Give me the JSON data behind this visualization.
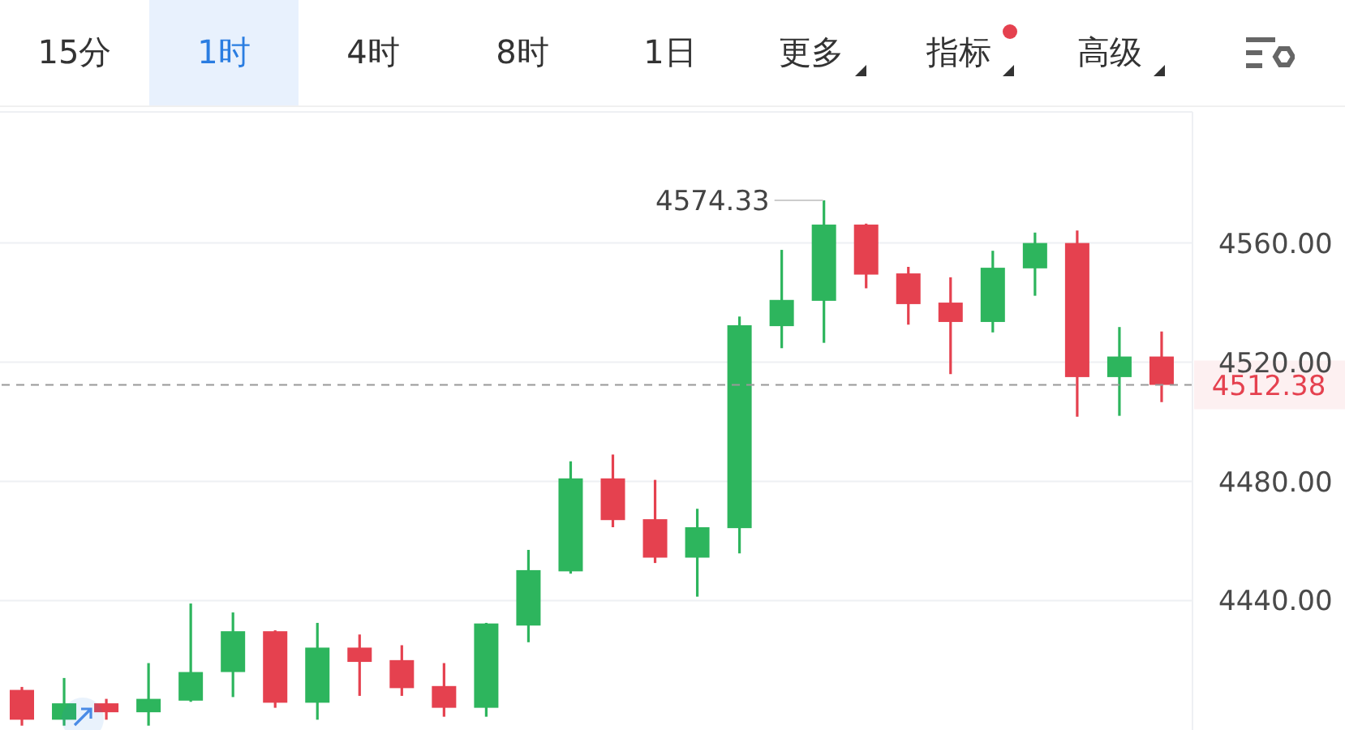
{
  "chart_data": {
    "type": "candlestick",
    "annotations": [
      "15分",
      "1时",
      "4时",
      "8时",
      "1日",
      "更多",
      "指标",
      "高级",
      "4574.33"
    ],
    "categories": [
      null,
      null,
      null,
      null,
      null,
      null,
      null,
      null,
      null,
      null,
      null,
      null,
      null,
      null,
      null,
      null,
      null,
      null,
      null,
      null,
      null,
      null,
      null,
      null,
      null,
      null,
      null,
      null
    ],
    "ohlc": [
      [
        4410,
        4411,
        4398,
        4400
      ],
      [
        4400,
        4414,
        4398,
        4405.5
      ],
      [
        4405.5,
        4407,
        4400,
        4402.5
      ],
      [
        4402.5,
        4419,
        4398,
        4407
      ],
      [
        4406.4,
        4439,
        4406,
        4416
      ],
      [
        4416,
        4436,
        4407.6,
        4429.7
      ],
      [
        4429.7,
        4430,
        4404,
        4405.7
      ],
      [
        4405.7,
        4432.5,
        4400,
        4424.2
      ],
      [
        4424.2,
        4428.6,
        4408,
        4419.4
      ],
      [
        4420,
        4425,
        4408,
        4410.6
      ],
      [
        4411.3,
        4419,
        4401,
        4404
      ],
      [
        4404,
        4432.5,
        4401,
        4432.3
      ],
      [
        4431.6,
        4457,
        4426,
        4450.2
      ],
      [
        4449.8,
        4486.7,
        4449,
        4481
      ],
      [
        4481,
        4489,
        4464.6,
        4467
      ],
      [
        4467.3,
        4480.5,
        4452.6,
        4454.4
      ],
      [
        4454.4,
        4470.8,
        4441.3,
        4464.6
      ],
      [
        4464.3,
        4535.3,
        4455.8,
        4532.4
      ],
      [
        4532.1,
        4557.7,
        4524.7,
        4540.9
      ],
      [
        4540.6,
        4574.33,
        4526.5,
        4566.2
      ],
      [
        4566.2,
        4566.5,
        4544.8,
        4549.4
      ],
      [
        4549.8,
        4552,
        4532.6,
        4539.5
      ],
      [
        4540,
        4548.5,
        4516,
        4533.5
      ],
      [
        4533.5,
        4557.4,
        4530,
        4551.7
      ],
      [
        4551.5,
        4563.5,
        4542.3,
        4560
      ],
      [
        4560,
        4564.2,
        4501.7,
        4515
      ],
      [
        4515,
        4531.8,
        4502,
        4521.9
      ],
      [
        4521.9,
        4530.3,
        4506.6,
        4512.38
      ]
    ],
    "colors": [
      "#e5414f",
      "#2db55d",
      "#e5414f",
      "#2db55d",
      "#2db55d",
      "#2db55d",
      "#e5414f",
      "#2db55d",
      "#e5414f",
      "#e5414f",
      "#e5414f",
      "#2db55d",
      "#2db55d",
      "#2db55d",
      "#e5414f",
      "#e5414f",
      "#2db55d",
      "#2db55d",
      "#2db55d",
      "#2db55d",
      "#e5414f",
      "#e5414f",
      "#e5414f",
      "#2db55d",
      "#2db55d",
      "#e5414f",
      "#2db55d",
      "#e5414f"
    ],
    "ylim": [
      4396,
      4604
    ],
    "yticks": [
      {
        "value": 4440,
        "label": "4440.00"
      },
      {
        "value": 4480,
        "label": "4480.00"
      },
      {
        "value": 4520,
        "label": "4520.00"
      },
      {
        "value": 4560,
        "label": "4560.00"
      }
    ],
    "grid": "y",
    "ref_lines": [
      {
        "axis": "y",
        "value": 4512.38,
        "label": "4512.38",
        "line_style": "dashed"
      }
    ]
  }
}
